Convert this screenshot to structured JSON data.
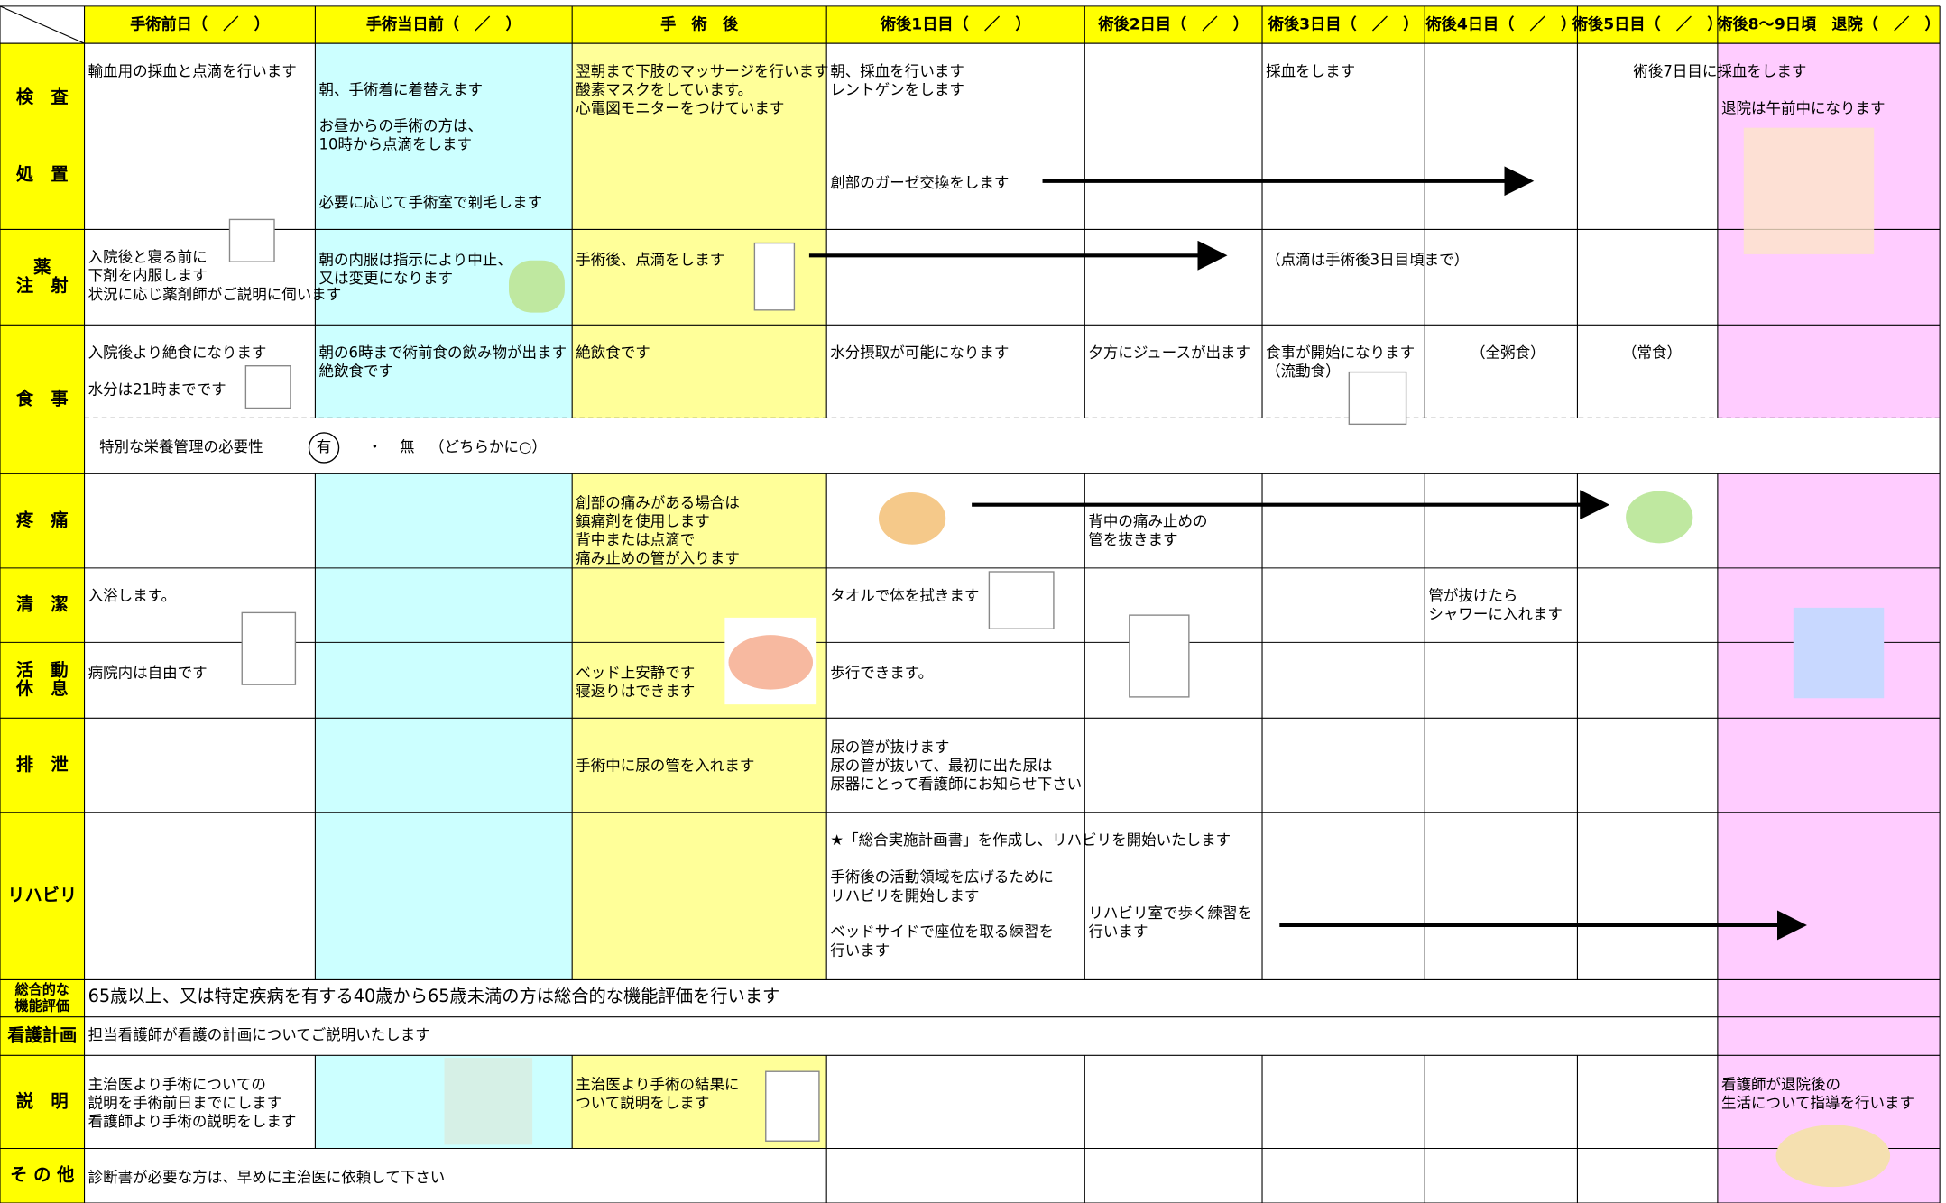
{
  "header": {
    "columns": [
      "手術前日（　／　）",
      "手術当日前（　／　）",
      "手　術　後",
      "術後1日目（　／　）",
      "術後2日目（　／　）",
      "術後3日目（　／　）",
      "術後4日目（　／　）",
      "術後5日目（　／　）",
      "術後8～9日頃　退院（　／　）"
    ]
  },
  "rows": [
    {
      "label": [
        "検　査",
        "処　置"
      ],
      "texts": [
        [
          "輸血用の採血と点滴を行います"
        ],
        [
          "朝、手術着に着替えます"
        ],
        [
          "お昼からの手術の方は、",
          "10時から点滴をします"
        ],
        [
          "必要に応じて手術室で剃毛します"
        ],
        [
          "翌朝まで下肢のマッサージを行います",
          "酸素マスクをしています。",
          "心電図モニターをつけています"
        ],
        [
          "朝、採血を行います",
          "レントゲンをします"
        ],
        [
          "創部のガーゼ交換をします"
        ],
        [
          "採血をします"
        ],
        [
          "術後7日目に採血をします"
        ],
        [
          "退院は午前中になります"
        ]
      ]
    },
    {
      "label": [
        "薬",
        "注　射"
      ],
      "texts": [
        [
          "入院後と寝る前に",
          "下剤を内服します",
          "状況に応じ薬剤師がご説明に伺います"
        ],
        [
          "朝の内服は指示により中止、",
          "又は変更になります"
        ],
        [
          "手術後、点滴をします"
        ],
        [
          "（点滴は手術後3日目頃まで）"
        ]
      ]
    },
    {
      "label": [
        "食　事"
      ],
      "texts": [
        [
          "入院後より絶食になります"
        ],
        [
          "水分は21時までです"
        ],
        [
          "朝の6時まで術前食の飲み物が出ます",
          "絶飲食です"
        ],
        [
          "絶飲食です"
        ],
        [
          "水分摂取が可能になります"
        ],
        [
          "夕方にジュースが出ます"
        ],
        [
          "食事が開始になります",
          "（流動食）"
        ],
        [
          "（全粥食）"
        ],
        [
          "（常食）"
        ]
      ],
      "note": [
        "特別な栄養管理の必要性",
        "有",
        "・",
        "無",
        "（どちらかに○）"
      ]
    },
    {
      "label": [
        "疼　痛"
      ],
      "texts": [
        [
          "創部の痛みがある場合は",
          "鎮痛剤を使用します",
          "背中または点滴で",
          "痛み止めの管が入ります"
        ],
        [
          "背中の痛み止めの",
          "管を抜きます"
        ]
      ]
    },
    {
      "label": [
        "清　潔"
      ],
      "texts": [
        [
          "入浴します。"
        ],
        [
          "タオルで体を拭きます"
        ],
        [
          "管が抜けたら",
          "シャワーに入れます"
        ]
      ]
    },
    {
      "label": [
        "活　動",
        "休　息"
      ],
      "texts": [
        [
          "病院内は自由です"
        ],
        [
          "ベッド上安静です",
          "寝返りはできます"
        ],
        [
          "歩行できます。"
        ]
      ]
    },
    {
      "label": [
        "排　泄"
      ],
      "texts": [
        [
          "手術中に尿の管を入れます"
        ],
        [
          "尿の管が抜けます",
          "尿の管が抜いて、最初に出た尿は",
          "尿器にとって看護師にお知らせ下さい"
        ]
      ]
    },
    {
      "label": [
        "リハビリ"
      ],
      "texts": [
        [
          "★「総合実施計画書」を作成し、リハビリを開始いたします"
        ],
        [
          "手術後の活動領域を広げるために",
          "リハビリを開始します"
        ],
        [
          "ベッドサイドで座位を取る練習を",
          "行います"
        ],
        [
          "リハビリ室で歩く練習を",
          "行います"
        ]
      ]
    },
    {
      "label": [
        "総合的な",
        "機能評価"
      ],
      "texts": [
        [
          "65歳以上、又は特定疾病を有する40歳から65歳未満の方は総合的な機能評価を行います"
        ]
      ]
    },
    {
      "label": [
        "看護計画"
      ],
      "texts": [
        [
          "担当看護師が看護の計画についてご説明いたします"
        ]
      ]
    },
    {
      "label": [
        "説　明"
      ],
      "texts": [
        [
          "主治医より手術についての",
          "説明を手術前日までにします",
          "看護師より手術の説明をします"
        ],
        [
          "主治医より手術の結果に",
          "ついて説明をします"
        ],
        [
          "看護師が退院後の",
          "生活について指導を行います"
        ]
      ]
    },
    {
      "label": [
        "そ の 他"
      ],
      "texts": [
        [
          "診断書が必要な方は、早めに主治医に依頼して下さい"
        ]
      ]
    }
  ]
}
